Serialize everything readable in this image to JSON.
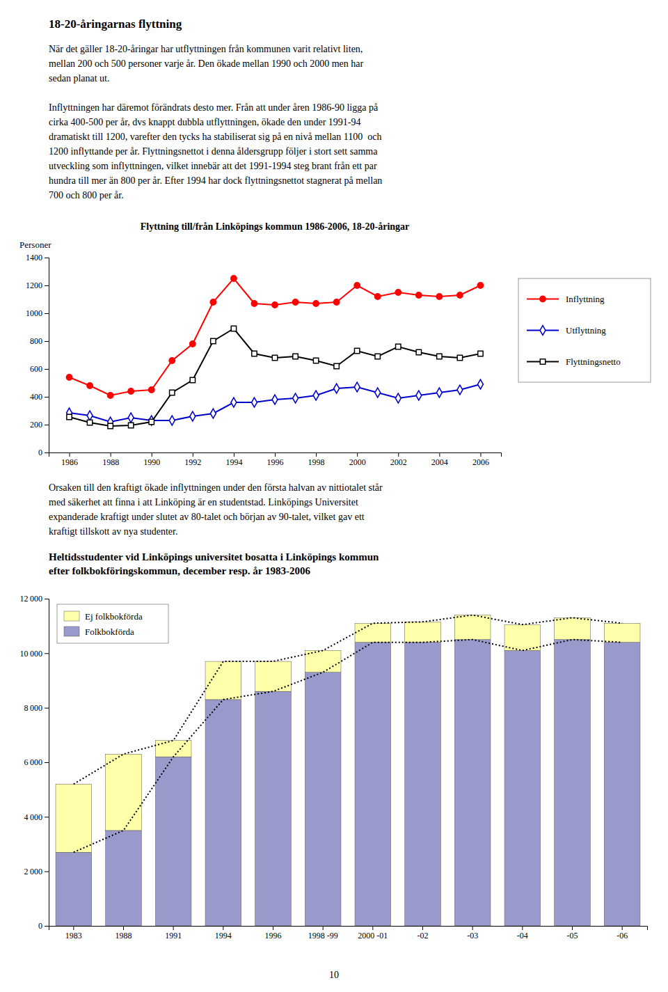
{
  "heading": "18-20-åringarnas flyttning",
  "paragraphs": [
    [
      "När det gäller 18-20-åringar har utflyttningen från kommunen varit relativt liten,",
      "mellan 200 och 500 personer varje år. Den ökade mellan 1990 och 2000 men har",
      "sedan planat ut."
    ],
    [
      "Inflyttningen har däremot förändrats desto mer. Från att under åren 1986-90 ligga på",
      "cirka 400-500 per år, dvs knappt dubbla utflyttningen, ökade den under 1991-94",
      "dramatiskt till 1200, varefter den tycks ha stabiliserat sig på en nivå mellan 1100  och",
      "1200 inflyttande per år. Flyttningsnettot i denna åldersgrupp följer i stort sett samma",
      "utveckling som inflyttningen, vilket innebär att det 1991-1994 steg brant från ett par",
      "hundra till mer än 800 per år. Efter 1994 har dock flyttningsnettot stagnerat på mellan",
      "700 och 800 per år."
    ]
  ],
  "chart_data": [
    {
      "type": "line",
      "title": "Flyttning till/från Linköpings kommun 1986-2006, 18-20-åringar",
      "ylabel": "Personer",
      "x": [
        1986,
        1987,
        1988,
        1989,
        1990,
        1991,
        1992,
        1993,
        1994,
        1995,
        1996,
        1997,
        1998,
        1999,
        2000,
        2001,
        2002,
        2003,
        2004,
        2005,
        2006
      ],
      "series": [
        {
          "name": "Inflyttning",
          "color": "#ff0000",
          "marker": "circle",
          "values": [
            540,
            480,
            410,
            440,
            450,
            660,
            780,
            1080,
            1250,
            1070,
            1060,
            1080,
            1070,
            1080,
            1200,
            1120,
            1150,
            1130,
            1120,
            1130,
            1200
          ]
        },
        {
          "name": "Utflyttning",
          "color": "#0000cc",
          "marker": "diamond",
          "values": [
            285,
            265,
            220,
            250,
            230,
            230,
            260,
            280,
            360,
            360,
            380,
            390,
            410,
            460,
            470,
            430,
            390,
            410,
            430,
            450,
            490
          ]
        },
        {
          "name": "Flyttningsnetto",
          "color": "#000000",
          "marker": "square",
          "values": [
            255,
            215,
            190,
            195,
            220,
            430,
            520,
            800,
            890,
            710,
            680,
            690,
            660,
            620,
            730,
            690,
            760,
            720,
            690,
            680,
            710
          ]
        }
      ],
      "xlim": [
        1985,
        2007
      ],
      "xticks": [
        1986,
        1988,
        1990,
        1992,
        1994,
        1996,
        1998,
        2000,
        2002,
        2004,
        2006
      ],
      "ylim": [
        0,
        1400
      ],
      "yticks": [
        0,
        200,
        400,
        600,
        800,
        1000,
        1200,
        1400
      ],
      "legend": "right"
    },
    {
      "type": "bar",
      "stacked": true,
      "title": "Heltidsstudenter vid Linköpings universitet bosatta i Linköpings kommun\nefter folkbokföringskommun, december resp. år 1983-2006",
      "categories": [
        "1983",
        "1988",
        "1991",
        "1994",
        "1996",
        "1998 -99",
        "2000 -01",
        "-02",
        "-03",
        "-04",
        "-05",
        "-06"
      ],
      "series": [
        {
          "name": "Folkbokförda",
          "color": "#9999cc",
          "values": [
            2700,
            3500,
            6200,
            8300,
            8600,
            9300,
            10400,
            10400,
            10500,
            10100,
            10500,
            10400
          ]
        },
        {
          "name": "Ej folkbokförda",
          "color": "#ffffaa",
          "values": [
            2500,
            2800,
            600,
            1400,
            1100,
            800,
            700,
            750,
            900,
            950,
            800,
            700
          ]
        },
        {
          "type": "line",
          "line_style": "dotted",
          "color": "#000000",
          "values": [
            5200,
            6300,
            6800,
            9700,
            9700,
            10100,
            11100,
            11150,
            11400,
            11050,
            11300,
            11100
          ]
        },
        {
          "type": "line",
          "line_style": "dotted",
          "color": "#000000",
          "values": [
            2700,
            3500,
            6200,
            8300,
            8600,
            9300,
            10400,
            10400,
            10500,
            10100,
            10500,
            10400
          ]
        }
      ],
      "ylim": [
        0,
        12000
      ],
      "yticks": [
        0,
        {
          "value": 2000,
          "label": "2 000"
        },
        {
          "value": 4000,
          "label": "4 000"
        },
        {
          "value": 6000,
          "label": "6 000"
        },
        {
          "value": 8000,
          "label": "8 000"
        },
        {
          "value": 10000,
          "label": "10 000"
        },
        {
          "value": 12000,
          "label": "12 000"
        }
      ],
      "legend": "upper left"
    }
  ],
  "middle_text": [
    "Orsaken till den kraftigt ökade inflyttningen under den första halvan av nittiotalet står",
    "med säkerhet att finna i att Linköping är en studentstad. Linköpings Universitet",
    "expanderade kraftigt under slutet av 80-talet och början av 90-talet, vilket gav ett",
    "kraftigt tillskott av nya studenter."
  ],
  "page_number": "10"
}
